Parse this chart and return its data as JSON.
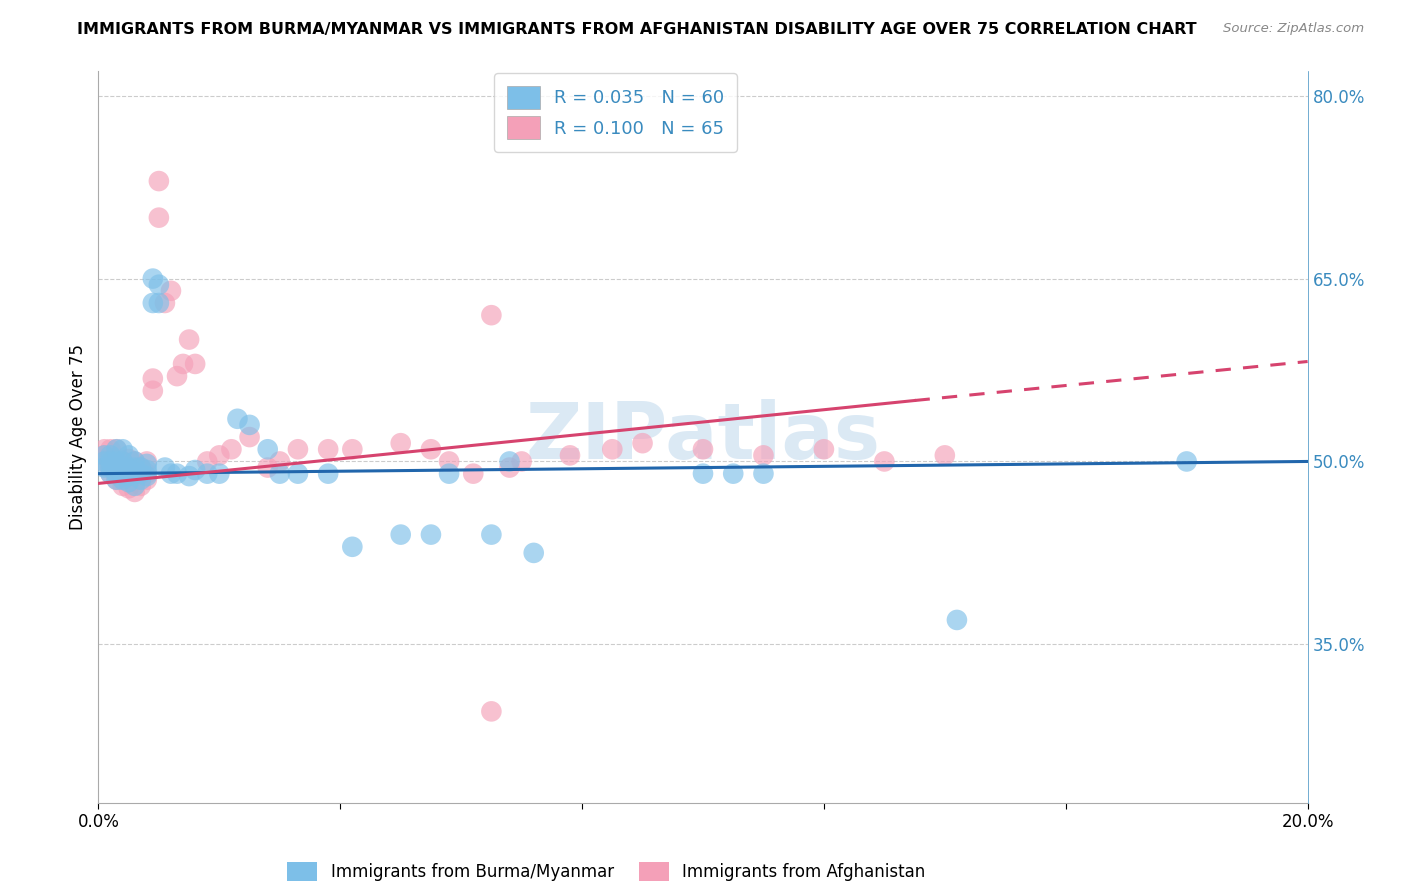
{
  "title": "IMMIGRANTS FROM BURMA/MYANMAR VS IMMIGRANTS FROM AFGHANISTAN DISABILITY AGE OVER 75 CORRELATION CHART",
  "source": "Source: ZipAtlas.com",
  "ylabel": "Disability Age Over 75",
  "legend_label_blue": "Immigrants from Burma/Myanmar",
  "legend_label_pink": "Immigrants from Afghanistan",
  "R_blue": 0.035,
  "N_blue": 60,
  "R_pink": 0.1,
  "N_pink": 65,
  "xlim": [
    0.0,
    0.2
  ],
  "ylim": [
    0.22,
    0.82
  ],
  "right_yticks": [
    0.35,
    0.5,
    0.65,
    0.8
  ],
  "right_yticklabels": [
    "35.0%",
    "50.0%",
    "65.0%",
    "80.0%"
  ],
  "xticks": [
    0.0,
    0.04,
    0.08,
    0.12,
    0.16,
    0.2
  ],
  "xticklabels": [
    "0.0%",
    "",
    "",
    "",
    "",
    "20.0%"
  ],
  "color_blue": "#7dbfe8",
  "color_pink": "#f4a0b8",
  "color_blue_line": "#2166ac",
  "color_pink_line": "#d6436e",
  "color_right_axis": "#3a8bbf",
  "watermark": "ZIPatlas",
  "blue_line_x0": 0.0,
  "blue_line_y0": 0.49,
  "blue_line_x1": 0.2,
  "blue_line_y1": 0.5,
  "pink_line_x0": 0.0,
  "pink_line_y0": 0.482,
  "pink_line_solid_x1": 0.135,
  "pink_line_solid_y1": 0.55,
  "pink_line_dash_x1": 0.2,
  "pink_line_dash_y1": 0.582,
  "grid_color": "#cccccc",
  "background_color": "#ffffff",
  "blue_x": [
    0.001,
    0.001,
    0.001,
    0.002,
    0.002,
    0.002,
    0.002,
    0.003,
    0.003,
    0.003,
    0.003,
    0.003,
    0.004,
    0.004,
    0.004,
    0.004,
    0.004,
    0.005,
    0.005,
    0.005,
    0.005,
    0.006,
    0.006,
    0.006,
    0.006,
    0.007,
    0.007,
    0.007,
    0.008,
    0.008,
    0.008,
    0.009,
    0.009,
    0.01,
    0.01,
    0.011,
    0.012,
    0.013,
    0.015,
    0.016,
    0.018,
    0.02,
    0.023,
    0.025,
    0.028,
    0.03,
    0.033,
    0.038,
    0.042,
    0.05,
    0.055,
    0.058,
    0.065,
    0.068,
    0.072,
    0.1,
    0.105,
    0.11,
    0.142,
    0.18
  ],
  "blue_y": [
    0.495,
    0.5,
    0.505,
    0.49,
    0.495,
    0.5,
    0.505,
    0.485,
    0.49,
    0.495,
    0.5,
    0.51,
    0.485,
    0.49,
    0.495,
    0.5,
    0.51,
    0.483,
    0.488,
    0.495,
    0.505,
    0.48,
    0.49,
    0.495,
    0.5,
    0.485,
    0.49,
    0.495,
    0.488,
    0.493,
    0.498,
    0.63,
    0.65,
    0.63,
    0.645,
    0.495,
    0.49,
    0.49,
    0.488,
    0.493,
    0.49,
    0.49,
    0.535,
    0.53,
    0.51,
    0.49,
    0.49,
    0.49,
    0.43,
    0.44,
    0.44,
    0.49,
    0.44,
    0.5,
    0.425,
    0.49,
    0.49,
    0.49,
    0.37,
    0.5
  ],
  "pink_x": [
    0.001,
    0.001,
    0.001,
    0.002,
    0.002,
    0.002,
    0.002,
    0.003,
    0.003,
    0.003,
    0.003,
    0.003,
    0.004,
    0.004,
    0.004,
    0.004,
    0.005,
    0.005,
    0.005,
    0.005,
    0.006,
    0.006,
    0.006,
    0.006,
    0.007,
    0.007,
    0.007,
    0.008,
    0.008,
    0.008,
    0.009,
    0.009,
    0.01,
    0.01,
    0.011,
    0.012,
    0.013,
    0.014,
    0.015,
    0.016,
    0.018,
    0.02,
    0.022,
    0.025,
    0.028,
    0.03,
    0.033,
    0.038,
    0.042,
    0.05,
    0.055,
    0.058,
    0.062,
    0.065,
    0.068,
    0.07,
    0.078,
    0.085,
    0.09,
    0.1,
    0.11,
    0.12,
    0.13,
    0.14,
    0.065
  ],
  "pink_y": [
    0.5,
    0.505,
    0.51,
    0.49,
    0.495,
    0.5,
    0.51,
    0.485,
    0.49,
    0.495,
    0.5,
    0.51,
    0.48,
    0.485,
    0.49,
    0.5,
    0.478,
    0.485,
    0.492,
    0.502,
    0.475,
    0.485,
    0.49,
    0.5,
    0.48,
    0.488,
    0.495,
    0.485,
    0.49,
    0.5,
    0.558,
    0.568,
    0.73,
    0.7,
    0.63,
    0.64,
    0.57,
    0.58,
    0.6,
    0.58,
    0.5,
    0.505,
    0.51,
    0.52,
    0.495,
    0.5,
    0.51,
    0.51,
    0.51,
    0.515,
    0.51,
    0.5,
    0.49,
    0.295,
    0.495,
    0.5,
    0.505,
    0.51,
    0.515,
    0.51,
    0.505,
    0.51,
    0.5,
    0.505,
    0.62
  ]
}
